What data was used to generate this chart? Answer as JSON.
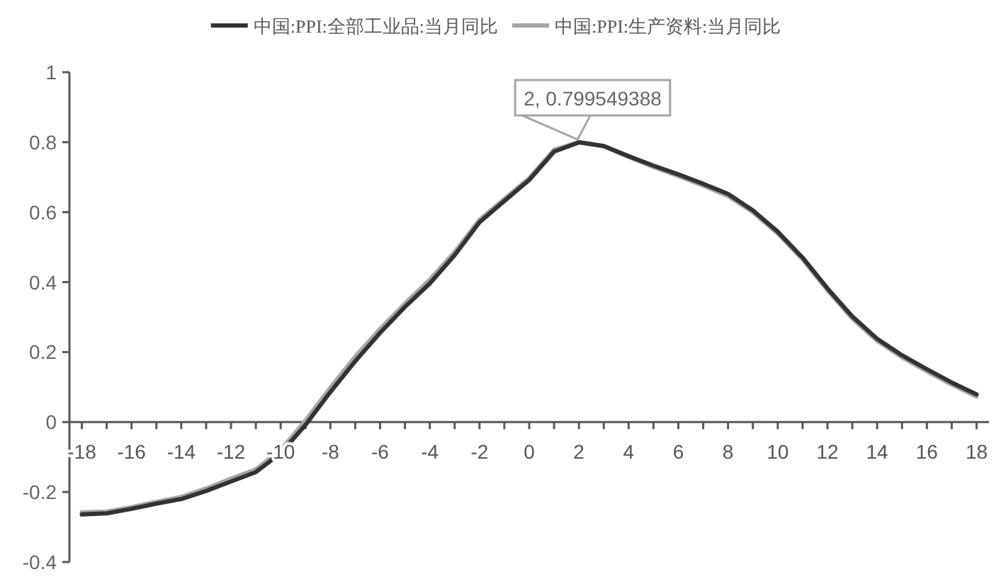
{
  "chart_data": {
    "type": "line",
    "legend": "top",
    "x": [
      -18,
      -17,
      -16,
      -15,
      -14,
      -13,
      -12,
      -11,
      -10,
      -9,
      -8,
      -7,
      -6,
      -5,
      -4,
      -3,
      -2,
      -1,
      0,
      1,
      2,
      3,
      4,
      5,
      6,
      7,
      8,
      9,
      10,
      11,
      12,
      13,
      14,
      15,
      16,
      17,
      18
    ],
    "series": [
      {
        "name": "中国:PPI:全部工业品:当月同比",
        "color": "#333333",
        "values": [
          -0.264,
          -0.261,
          -0.248,
          -0.233,
          -0.22,
          -0.197,
          -0.17,
          -0.143,
          -0.089,
          -0.008,
          0.086,
          0.174,
          0.255,
          0.329,
          0.396,
          0.477,
          0.571,
          0.632,
          0.692,
          0.773,
          0.799549388,
          0.789,
          0.76,
          0.733,
          0.708,
          0.681,
          0.652,
          0.605,
          0.544,
          0.47,
          0.382,
          0.302,
          0.238,
          0.191,
          0.151,
          0.113,
          0.079
        ]
      },
      {
        "name": "中国:PPI:生产资料:当月同比",
        "color": "#a6a6a6",
        "values": [
          -0.258,
          -0.256,
          -0.243,
          -0.228,
          -0.214,
          -0.19,
          -0.162,
          -0.135,
          -0.08,
          0.004,
          0.098,
          0.187,
          0.266,
          0.339,
          0.407,
          0.486,
          0.578,
          0.638,
          0.697,
          0.778,
          0.8,
          0.788,
          0.758,
          0.729,
          0.703,
          0.676,
          0.646,
          0.6,
          0.539,
          0.465,
          0.377,
          0.296,
          0.232,
          0.185,
          0.145,
          0.107,
          0.073
        ]
      }
    ],
    "annotations": [
      {
        "text": "2, 0.799549388",
        "x": 2,
        "y": 0.799549388
      }
    ],
    "xlim": [
      -18.5,
      18.5
    ],
    "xticks": [
      -18,
      {
        "value": -17,
        "label": null
      },
      -16,
      {
        "value": -15,
        "label": null
      },
      -14,
      {
        "value": -13,
        "label": null
      },
      -12,
      {
        "value": -11,
        "label": null
      },
      -10,
      {
        "value": -9,
        "label": null
      },
      -8,
      {
        "value": -7,
        "label": null
      },
      -6,
      {
        "value": -5,
        "label": null
      },
      -4,
      {
        "value": -3,
        "label": null
      },
      -2,
      {
        "value": -1,
        "label": null
      },
      0,
      {
        "value": 1,
        "label": null
      },
      2,
      {
        "value": 3,
        "label": null
      },
      4,
      {
        "value": 5,
        "label": null
      },
      6,
      {
        "value": 7,
        "label": null
      },
      8,
      {
        "value": 9,
        "label": null
      },
      10,
      {
        "value": 11,
        "label": null
      },
      12,
      {
        "value": 13,
        "label": null
      },
      14,
      {
        "value": 15,
        "label": null
      },
      16,
      {
        "value": 17,
        "label": null
      },
      18
    ],
    "ylim": [
      -0.4,
      1
    ],
    "yticks": [
      -0.4,
      -0.2,
      0,
      0.2,
      0.4,
      0.6,
      0.8,
      1
    ]
  }
}
